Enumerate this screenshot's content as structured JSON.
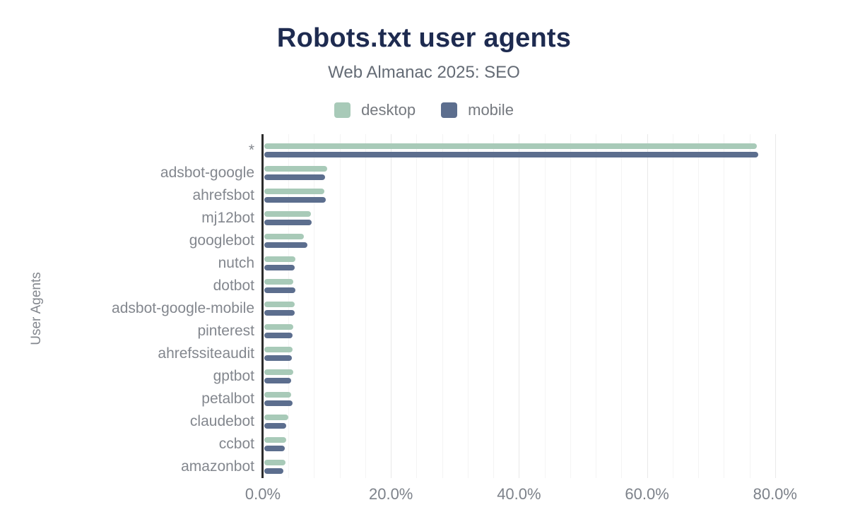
{
  "header": {
    "title": "Robots.txt user agents",
    "subtitle": "Web Almanac 2025: SEO"
  },
  "yaxis_title": "User Agents",
  "chart_data": {
    "type": "bar",
    "orientation": "horizontal",
    "title": "Robots.txt user agents",
    "subtitle": "Web Almanac 2025: SEO",
    "xlabel": "",
    "ylabel": "User Agents",
    "legend_position": "top",
    "x_ticks": [
      0,
      20,
      40,
      60,
      80
    ],
    "x_tick_labels": [
      "0.0%",
      "20.0%",
      "40.0%",
      "60.0%",
      "80.0%"
    ],
    "xlim": [
      0,
      81.7
    ],
    "grid": "vertical minor gridlines every 4%, major gridlines every 20%",
    "value_unit": "%",
    "categories": [
      "*",
      "adsbot-google",
      "ahrefsbot",
      "mj12bot",
      "googlebot",
      "nutch",
      "dotbot",
      "adsbot-google-mobile",
      "pinterest",
      "ahrefssiteaudit",
      "gptbot",
      "petalbot",
      "claudebot",
      "ccbot",
      "amazonbot"
    ],
    "series": [
      {
        "name": "desktop",
        "color": "#a8cab8",
        "values": [
          76.9,
          9.8,
          9.4,
          7.3,
          6.2,
          4.9,
          4.5,
          4.8,
          4.5,
          4.4,
          4.5,
          4.2,
          3.7,
          3.4,
          3.3
        ]
      },
      {
        "name": "mobile",
        "color": "#5c6e8e",
        "values": [
          77.2,
          9.5,
          9.6,
          7.4,
          6.7,
          4.7,
          4.9,
          4.7,
          4.4,
          4.3,
          4.2,
          4.4,
          3.4,
          3.2,
          3.0
        ]
      }
    ]
  },
  "colors": {
    "title": "#1e2b50",
    "subtitle": "#646b75",
    "axis_text": "#83878e",
    "axis_line": "#2b2b2b",
    "gridline_minor": "#f4f4f4",
    "gridline_major": "#e9e9e9",
    "background": "#ffffff"
  }
}
